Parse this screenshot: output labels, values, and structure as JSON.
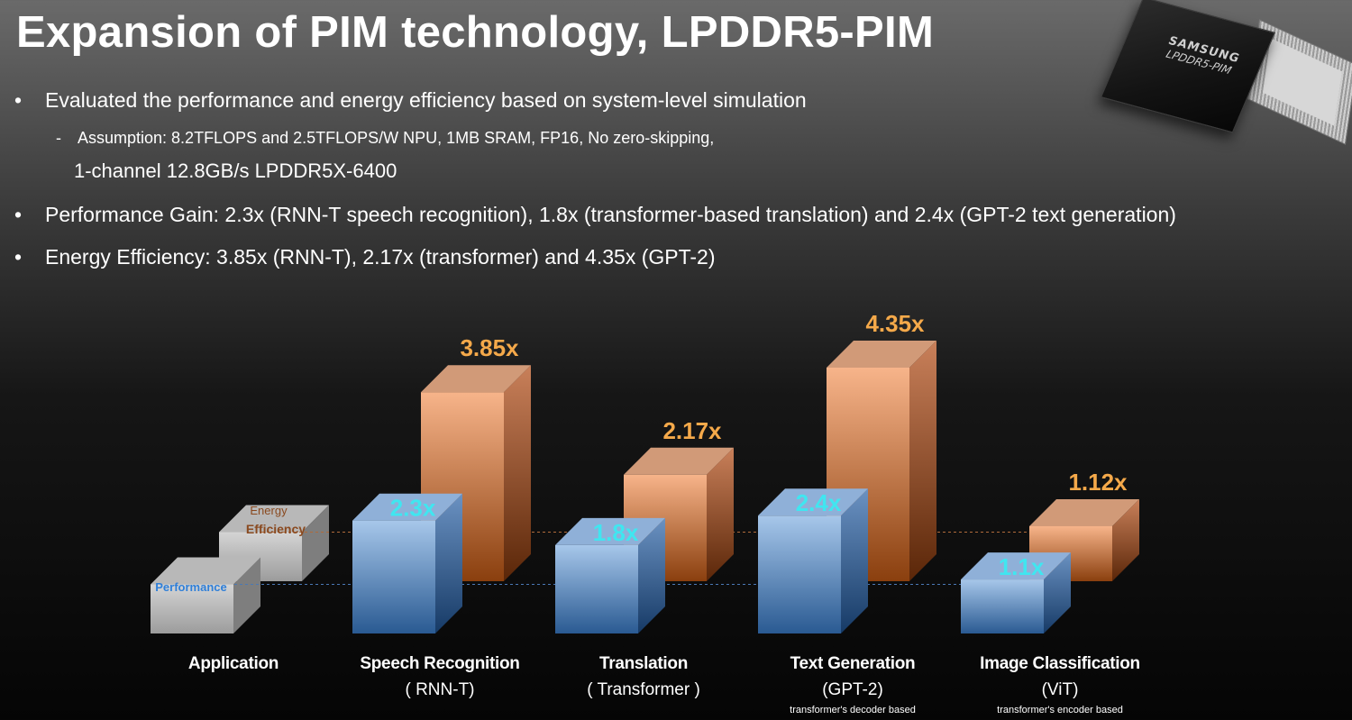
{
  "title": "Expansion of PIM technology, LPDDR5-PIM",
  "bullets": {
    "b1": "Evaluated the performance and energy efficiency based on system-level simulation",
    "b1_sub_line1": "Assumption:  8.2TFLOPS and 2.5TFLOPS/W NPU, 1MB SRAM, FP16, No zero-skipping,",
    "b1_sub_line2": "1-channel 12.8GB/s LPDDR5X-6400",
    "b2": "Performance Gain: 2.3x (RNN-T speech recognition), 1.8x (transformer-based translation) and  2.4x (GPT-2 text generation)",
    "b3": "Energy Efficiency: 3.85x (RNN-T), 2.17x (transformer) and 4.35x (GPT-2)",
    "bullet_char": "•",
    "dash_char": "-"
  },
  "chip": {
    "brand": "SAMSUNG",
    "model": "LPDDR5-PIM"
  },
  "colors": {
    "performance_top": "#a7c7ea",
    "performance_bottom": "#2a5a92",
    "energy_top": "#f7b48a",
    "energy_bottom": "#8a3f0e",
    "performance_label": "#40e6f0",
    "energy_label": "#f5a94a",
    "baseline_box": "#c9c9c9",
    "legend_perf_text": "#2f7fd8",
    "legend_energy_text": "#8a4a20"
  },
  "chart_data": {
    "type": "bar",
    "style": "3d-clustered",
    "categories": [
      {
        "name": "Speech Recognition",
        "sub": "( RNN-T)",
        "note": ""
      },
      {
        "name": "Translation",
        "sub": "( Transformer )",
        "note": ""
      },
      {
        "name": "Text Generation",
        "sub": "(GPT-2)",
        "note": "transformer's decoder based"
      },
      {
        "name": "Image Classification",
        "sub": "(ViT)",
        "note": "transformer's encoder based"
      }
    ],
    "baseline_category": "Application",
    "series": [
      {
        "name": "Performance",
        "values": [
          2.3,
          1.8,
          2.4,
          1.1
        ],
        "labels": [
          "2.3x",
          "1.8x",
          "2.4x",
          "1.1x"
        ]
      },
      {
        "name": "Energy Efficiency",
        "values": [
          3.85,
          2.17,
          4.35,
          1.12
        ],
        "labels": [
          "3.85x",
          "2.17x",
          "4.35x",
          "1.12x"
        ]
      }
    ],
    "legend": {
      "performance": "Performance",
      "energy_line1": "Energy",
      "energy_line2": "Efficiency"
    },
    "baseline_value": 1.0,
    "grid": false,
    "reference_lines": "dotted at baseline (1.0x) for each series"
  }
}
